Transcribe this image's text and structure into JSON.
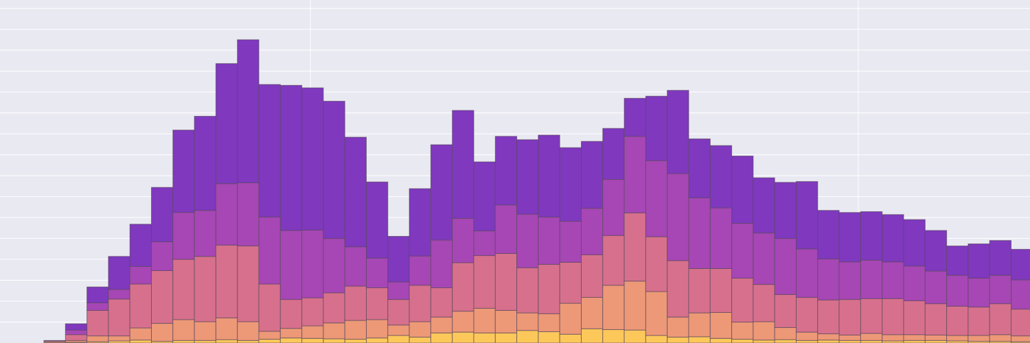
{
  "chart_data": {
    "type": "bar",
    "stacked": true,
    "grid": true,
    "legend": "none",
    "ylim": [
      0,
      8.2
    ],
    "x": [
      1,
      2,
      3,
      4,
      5,
      6,
      7,
      8,
      9,
      10,
      11,
      12,
      13,
      14,
      15,
      16,
      17,
      18,
      19,
      20,
      21,
      22,
      23,
      24,
      25,
      26,
      27,
      28,
      29,
      30,
      31,
      32,
      33,
      34,
      35,
      36,
      37,
      38,
      39,
      40,
      41,
      42,
      43,
      44,
      45,
      46
    ],
    "series": [
      {
        "color": "#fcc85a",
        "values": [
          0.01,
          0.02,
          0.03,
          0.05,
          0.07,
          0.04,
          0.06,
          0.06,
          0.08,
          0.06,
          0.09,
          0.12,
          0.11,
          0.1,
          0.09,
          0.12,
          0.18,
          0.14,
          0.24,
          0.26,
          0.24,
          0.24,
          0.3,
          0.27,
          0.21,
          0.34,
          0.32,
          0.31,
          0.18,
          0.14,
          0.15,
          0.11,
          0.09,
          0.07,
          0.08,
          0.06,
          0.07,
          0.06,
          0.06,
          0.05,
          0.06,
          0.06,
          0.05,
          0.04,
          0.04,
          0.03
        ]
      },
      {
        "color": "#ed9877",
        "values": [
          0.03,
          0.04,
          0.14,
          0.12,
          0.29,
          0.43,
          0.5,
          0.45,
          0.52,
          0.45,
          0.19,
          0.23,
          0.3,
          0.38,
          0.45,
          0.44,
          0.25,
          0.37,
          0.38,
          0.5,
          0.59,
          0.54,
          0.42,
          0.43,
          0.74,
          0.75,
          1.06,
          1.17,
          1.05,
          0.48,
          0.57,
          0.62,
          0.41,
          0.44,
          0.29,
          0.2,
          0.15,
          0.13,
          0.17,
          0.15,
          0.14,
          0.13,
          0.13,
          0.14,
          0.16,
          0.14
        ]
      },
      {
        "color": "#d7708c",
        "values": [
          0.01,
          0.14,
          0.61,
          0.88,
          1.05,
          1.26,
          1.44,
          1.56,
          1.74,
          1.81,
          1.13,
          0.69,
          0.67,
          0.72,
          0.82,
          0.76,
          0.61,
          0.87,
          0.7,
          1.16,
          1.26,
          1.36,
          1.08,
          1.18,
          0.98,
          1.02,
          1.19,
          1.63,
          1.31,
          1.35,
          1.06,
          1.05,
          1.05,
          0.89,
          0.79,
          0.83,
          0.81,
          0.85,
          0.83,
          0.86,
          0.81,
          0.75,
          0.7,
          0.68,
          0.74,
          0.64
        ]
      },
      {
        "color": "#a746b5",
        "values": [
          0.01,
          0.11,
          0.18,
          0.23,
          0.42,
          0.69,
          1.12,
          1.1,
          1.47,
          1.51,
          1.6,
          1.65,
          1.62,
          1.3,
          0.94,
          0.71,
          0.42,
          0.7,
          1.14,
          1.06,
          0.59,
          1.16,
          1.28,
          1.13,
          0.98,
          1.11,
          1.34,
          1.83,
          1.82,
          2.08,
          1.69,
          1.45,
          1.31,
          1.23,
          1.34,
          1.16,
          0.98,
          0.9,
          0.92,
          0.88,
          0.83,
          0.78,
          0.74,
          0.69,
          0.68,
          0.7
        ]
      },
      {
        "color": "#7f38be",
        "values": [
          0.0,
          0.15,
          0.38,
          0.79,
          1.01,
          1.3,
          1.97,
          2.25,
          2.87,
          3.42,
          3.17,
          3.47,
          3.4,
          3.28,
          2.62,
          1.82,
          1.09,
          1.61,
          2.28,
          2.58,
          1.65,
          1.64,
          1.78,
          1.96,
          1.76,
          1.6,
          1.22,
          0.91,
          1.54,
          1.99,
          1.41,
          1.49,
          1.61,
          1.32,
          1.34,
          1.61,
          1.16,
          1.18,
          1.16,
          1.13,
          1.11,
          0.97,
          0.7,
          0.82,
          0.83,
          0.73
        ]
      }
    ]
  }
}
